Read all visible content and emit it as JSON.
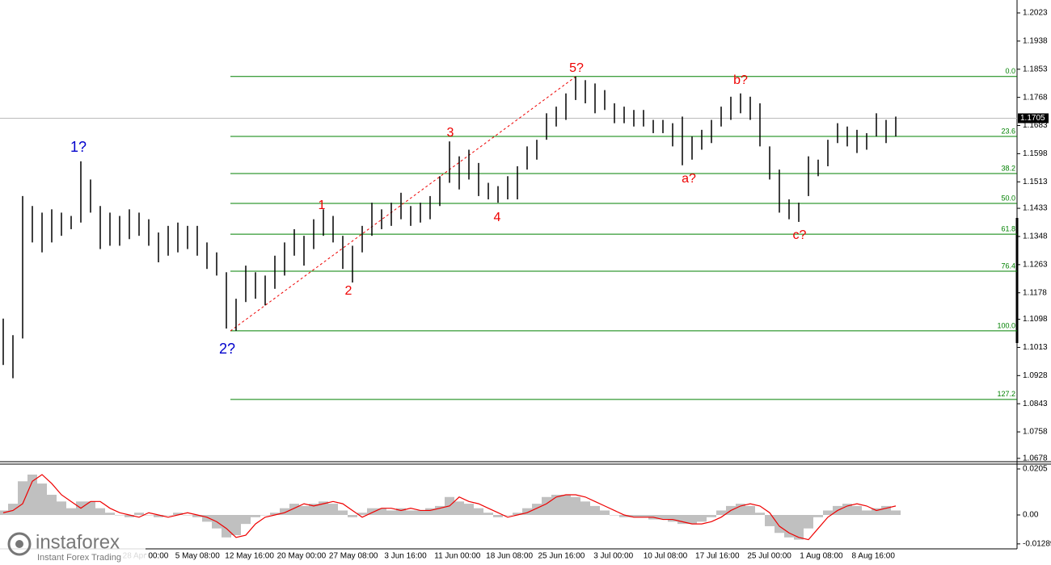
{
  "chart_data": {
    "type": "ohlc",
    "ylim": [
      1.0668,
      1.2062
    ],
    "yticks": [
      1.2023,
      1.1938,
      1.1853,
      1.1768,
      1.1683,
      1.1598,
      1.1513,
      1.1433,
      1.1348,
      1.1263,
      1.1178,
      1.1098,
      1.1013,
      1.0928,
      1.0843,
      1.0758,
      1.0678
    ],
    "current_price": 1.1705,
    "high": [
      1.11,
      1.105,
      1.147,
      1.144,
      1.142,
      1.143,
      1.142,
      1.141,
      1.1575,
      1.152,
      1.144,
      1.142,
      1.141,
      1.143,
      1.142,
      1.14,
      1.136,
      1.138,
      1.139,
      1.138,
      1.138,
      1.133,
      1.13,
      1.124,
      1.116,
      1.126,
      1.124,
      1.123,
      1.129,
      1.133,
      1.137,
      1.135,
      1.14,
      1.143,
      1.141,
      1.135,
      1.132,
      1.138,
      1.145,
      1.143,
      1.145,
      1.148,
      1.144,
      1.145,
      1.147,
      1.153,
      1.1635,
      1.159,
      1.161,
      1.157,
      1.151,
      1.15,
      1.153,
      1.156,
      1.162,
      1.164,
      1.172,
      1.174,
      1.178,
      1.1831,
      1.182,
      1.181,
      1.179,
      1.175,
      1.174,
      1.173,
      1.173,
      1.17,
      1.17,
      1.169,
      1.171,
      1.165,
      1.167,
      1.17,
      1.174,
      1.177,
      1.178,
      1.177,
      1.175,
      1.162,
      1.155,
      1.146,
      1.145,
      1.159,
      1.158,
      1.164,
      1.169,
      1.168,
      1.167,
      1.166,
      1.172,
      1.17,
      1.171
    ],
    "low": [
      1.096,
      1.092,
      1.104,
      1.133,
      1.13,
      1.133,
      1.135,
      1.137,
      1.139,
      1.142,
      1.131,
      1.132,
      1.132,
      1.134,
      1.135,
      1.132,
      1.127,
      1.129,
      1.13,
      1.131,
      1.129,
      1.125,
      1.123,
      1.107,
      1.1063,
      1.115,
      1.116,
      1.114,
      1.119,
      1.123,
      1.129,
      1.126,
      1.131,
      1.135,
      1.133,
      1.125,
      1.1209,
      1.13,
      1.135,
      1.137,
      1.138,
      1.14,
      1.138,
      1.139,
      1.14,
      1.144,
      1.151,
      1.149,
      1.152,
      1.147,
      1.146,
      1.145,
      1.146,
      1.146,
      1.155,
      1.158,
      1.164,
      1.168,
      1.17,
      1.176,
      1.175,
      1.172,
      1.173,
      1.169,
      1.169,
      1.168,
      1.168,
      1.166,
      1.166,
      1.162,
      1.1563,
      1.158,
      1.161,
      1.163,
      1.168,
      1.17,
      1.172,
      1.17,
      1.162,
      1.152,
      1.142,
      1.14,
      1.1392,
      1.147,
      1.153,
      1.156,
      1.163,
      1.162,
      1.16,
      1.161,
      1.165,
      1.163,
      1.165
    ],
    "fib_levels": [
      {
        "label": "0.0",
        "price": 1.1831
      },
      {
        "label": "23.6",
        "price": 1.165
      },
      {
        "label": "38.2",
        "price": 1.1538
      },
      {
        "label": "50.0",
        "price": 1.1448
      },
      {
        "label": "61.8",
        "price": 1.1355
      },
      {
        "label": "76.4",
        "price": 1.1243
      },
      {
        "label": "100.0",
        "price": 1.1063
      },
      {
        "label": "127.2",
        "price": 1.0856
      }
    ],
    "waves": [
      "1?",
      "2?",
      "1",
      "2",
      "3",
      "4",
      "5?",
      "a?",
      "b?",
      "c?"
    ],
    "x_labels": [
      "28 Apr 00:00",
      "5 May 08:00",
      "12 May 16:00",
      "20 May 00:00",
      "27 May 08:00",
      "3 Jun 16:00",
      "11 Jun 00:00",
      "18 Jun 08:00",
      "25 Jun 16:00",
      "3 Jul 00:00",
      "10 Jul 08:00",
      "17 Jul 16:00",
      "25 Jul 00:00",
      "1 Aug 08:00",
      "8 Aug 16:00"
    ],
    "oscillator": {
      "ylim": [
        -0.0151,
        0.0223
      ],
      "yticks": [
        0.0205,
        {
          "value": 0,
          "label": "0.00"
        },
        -0.01289
      ],
      "histogram": [
        0.002,
        0.005,
        0.015,
        0.018,
        0.014,
        0.009,
        0.006,
        0.003,
        0.006,
        0.006,
        0.003,
        0.001,
        0,
        -0.001,
        0.001,
        0,
        -0.001,
        0,
        0.001,
        0,
        -0.001,
        -0.003,
        -0.006,
        -0.01,
        -0.009,
        -0.004,
        -0.001,
        0,
        0.001,
        0.003,
        0.005,
        0.004,
        0.005,
        0.006,
        0.005,
        0.002,
        -0.001,
        0.001,
        0.003,
        0.003,
        0.002,
        0.003,
        0.002,
        0.002,
        0.003,
        0.004,
        0.008,
        0.006,
        0.005,
        0.003,
        0.001,
        -0.001,
        0,
        0.001,
        0.003,
        0.005,
        0.008,
        0.009,
        0.009,
        0.008,
        0.006,
        0.004,
        0.002,
        0,
        -0.001,
        -0.001,
        -0.001,
        -0.002,
        -0.002,
        -0.003,
        -0.004,
        -0.004,
        -0.003,
        -0.001,
        0.002,
        0.004,
        0.005,
        0.004,
        0.001,
        -0.005,
        -0.008,
        -0.01,
        -0.011,
        -0.006,
        -0.001,
        0.002,
        0.004,
        0.005,
        0.004,
        0.002,
        0.003,
        0.004,
        0.002
      ],
      "signal": [
        0.001,
        0.002,
        0.005,
        0.015,
        0.018,
        0.014,
        0.009,
        0.006,
        0.003,
        0.006,
        0.006,
        0.003,
        0.001,
        0,
        -0.001,
        0.001,
        0,
        -0.001,
        0,
        0.001,
        0,
        -0.001,
        -0.003,
        -0.006,
        -0.01,
        -0.009,
        -0.004,
        -0.001,
        0,
        0.001,
        0.003,
        0.005,
        0.004,
        0.005,
        0.006,
        0.005,
        0.002,
        -0.001,
        0.001,
        0.003,
        0.003,
        0.002,
        0.003,
        0.002,
        0.002,
        0.003,
        0.004,
        0.008,
        0.006,
        0.005,
        0.003,
        0.001,
        -0.001,
        0,
        0.001,
        0.003,
        0.005,
        0.008,
        0.009,
        0.009,
        0.008,
        0.006,
        0.004,
        0.002,
        0,
        -0.001,
        -0.001,
        -0.001,
        -0.002,
        -0.002,
        -0.003,
        -0.004,
        -0.004,
        -0.003,
        -0.001,
        0.002,
        0.004,
        0.005,
        0.004,
        0.001,
        -0.005,
        -0.008,
        -0.01,
        -0.011,
        -0.006,
        -0.001,
        0.002,
        0.004,
        0.005,
        0.004,
        0.002,
        0.003,
        0.004
      ]
    }
  },
  "logo": {
    "brand": "instaforex",
    "tagline": "Instant Forex Trading"
  }
}
